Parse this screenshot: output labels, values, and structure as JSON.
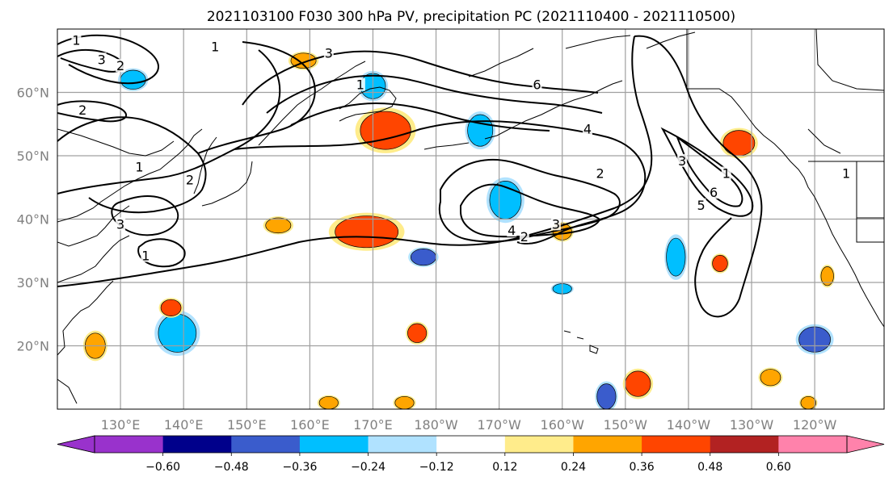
{
  "title": "2021103100 F030 300 hPa PV, precipitation PC (2021110400 - 2021110500)",
  "map": {
    "lat_range": [
      10,
      70
    ],
    "lon_range": [
      120,
      251
    ],
    "lat_ticks": [
      {
        "lat": 60,
        "label": "60°N"
      },
      {
        "lat": 50,
        "label": "50°N"
      },
      {
        "lat": 40,
        "label": "40°N"
      },
      {
        "lat": 30,
        "label": "30°N"
      },
      {
        "lat": 20,
        "label": "20°N"
      }
    ],
    "lon_ticks": [
      {
        "lon": 130,
        "label": "130°E"
      },
      {
        "lon": 140,
        "label": "140°E"
      },
      {
        "lon": 150,
        "label": "150°E"
      },
      {
        "lon": 160,
        "label": "160°E"
      },
      {
        "lon": 170,
        "label": "170°E"
      },
      {
        "lon": 180,
        "label": "180°W"
      },
      {
        "lon": 190,
        "label": "170°W"
      },
      {
        "lon": 200,
        "label": "160°W"
      },
      {
        "lon": 210,
        "label": "150°W"
      },
      {
        "lon": 220,
        "label": "140°W"
      },
      {
        "lon": 230,
        "label": "130°W"
      },
      {
        "lon": 240,
        "label": "120°W"
      }
    ],
    "gridlines": true,
    "colors": {
      "grid": "#a0a0a0",
      "tick_label": "#808080",
      "contour": "#000000",
      "coast": "#000000"
    }
  },
  "colorbar": {
    "colors": [
      "#9932cc",
      "#00008b",
      "#3a5ccc",
      "#00bfff",
      "#b0e2ff",
      "#ffffff",
      "#ffec8b",
      "#ffa500",
      "#ff4500",
      "#b22222",
      "#ff82ab"
    ],
    "tick_labels": [
      "−0.60",
      "−0.48",
      "−0.36",
      "−0.24",
      "−0.12",
      "0.12",
      "0.24",
      "0.36",
      "0.48",
      "0.60"
    ],
    "extend": "both"
  },
  "contour_labels": [
    {
      "text": "1",
      "lon": 123,
      "lat": 68
    },
    {
      "text": "3",
      "lon": 127,
      "lat": 65
    },
    {
      "text": "2",
      "lon": 130,
      "lat": 64
    },
    {
      "text": "3",
      "lon": 163,
      "lat": 66
    },
    {
      "text": "2",
      "lon": 124,
      "lat": 57
    },
    {
      "text": "1",
      "lon": 145,
      "lat": 67
    },
    {
      "text": "6",
      "lon": 196,
      "lat": 61
    },
    {
      "text": "4",
      "lon": 204,
      "lat": 54
    },
    {
      "text": "1",
      "lon": 168,
      "lat": 61
    },
    {
      "text": "1",
      "lon": 133,
      "lat": 48
    },
    {
      "text": "2",
      "lon": 141,
      "lat": 46
    },
    {
      "text": "3",
      "lon": 130,
      "lat": 39
    },
    {
      "text": "1",
      "lon": 134,
      "lat": 34
    },
    {
      "text": "2",
      "lon": 206,
      "lat": 47
    },
    {
      "text": "3",
      "lon": 219,
      "lat": 49
    },
    {
      "text": "1",
      "lon": 226,
      "lat": 47
    },
    {
      "text": "6",
      "lon": 224,
      "lat": 44
    },
    {
      "text": "5",
      "lon": 222,
      "lat": 42
    },
    {
      "text": "4",
      "lon": 192,
      "lat": 38
    },
    {
      "text": "3",
      "lon": 199,
      "lat": 39
    },
    {
      "text": "2",
      "lon": 194,
      "lat": 37
    },
    {
      "text": "1",
      "lon": 245,
      "lat": 47
    }
  ],
  "precip_patches": [
    {
      "lon": 159,
      "lat": 65,
      "rx": 2,
      "ry": 1.2,
      "value": 0.3
    },
    {
      "lon": 132,
      "lat": 62,
      "rx": 2,
      "ry": 1.5,
      "value": -0.3
    },
    {
      "lon": 172,
      "lat": 54,
      "rx": 4,
      "ry": 3,
      "value": 0.4
    },
    {
      "lon": 170,
      "lat": 61,
      "rx": 2,
      "ry": 2,
      "value": -0.3
    },
    {
      "lon": 187,
      "lat": 54,
      "rx": 2,
      "ry": 2.5,
      "value": -0.3
    },
    {
      "lon": 191,
      "lat": 43,
      "rx": 2.5,
      "ry": 3,
      "value": -0.35
    },
    {
      "lon": 169,
      "lat": 38,
      "rx": 5,
      "ry": 2.5,
      "value": 0.42
    },
    {
      "lon": 155,
      "lat": 39,
      "rx": 2,
      "ry": 1.2,
      "value": 0.3
    },
    {
      "lon": 178,
      "lat": 34,
      "rx": 2,
      "ry": 1.3,
      "value": -0.4
    },
    {
      "lon": 200,
      "lat": 38,
      "rx": 1.5,
      "ry": 1.3,
      "value": 0.3
    },
    {
      "lon": 218,
      "lat": 34,
      "rx": 1.5,
      "ry": 3,
      "value": -0.3
    },
    {
      "lon": 228,
      "lat": 52,
      "rx": 2.5,
      "ry": 2,
      "value": 0.38
    },
    {
      "lon": 139,
      "lat": 22,
      "rx": 3,
      "ry": 3,
      "value": -0.32
    },
    {
      "lon": 138,
      "lat": 26,
      "rx": 1.6,
      "ry": 1.3,
      "value": 0.4
    },
    {
      "lon": 126,
      "lat": 20,
      "rx": 1.6,
      "ry": 2,
      "value": 0.3
    },
    {
      "lon": 177,
      "lat": 22,
      "rx": 1.5,
      "ry": 1.5,
      "value": 0.38
    },
    {
      "lon": 200,
      "lat": 29,
      "rx": 1.5,
      "ry": 0.8,
      "value": -0.25
    },
    {
      "lon": 212,
      "lat": 14,
      "rx": 2,
      "ry": 2,
      "value": 0.38
    },
    {
      "lon": 207,
      "lat": 12,
      "rx": 1.5,
      "ry": 2,
      "value": -0.4
    },
    {
      "lon": 240,
      "lat": 21,
      "rx": 2.5,
      "ry": 2,
      "value": -0.4
    },
    {
      "lon": 233,
      "lat": 15,
      "rx": 1.6,
      "ry": 1.3,
      "value": 0.3
    },
    {
      "lon": 225,
      "lat": 33,
      "rx": 1.2,
      "ry": 1.3,
      "value": 0.42
    },
    {
      "lon": 242,
      "lat": 31,
      "rx": 1,
      "ry": 1.5,
      "value": 0.3
    },
    {
      "lon": 175,
      "lat": 11,
      "rx": 1.5,
      "ry": 1,
      "value": 0.3
    },
    {
      "lon": 163,
      "lat": 11,
      "rx": 1.5,
      "ry": 1,
      "value": 0.3
    },
    {
      "lon": 239,
      "lat": 11,
      "rx": 1.2,
      "ry": 1,
      "value": 0.3
    }
  ]
}
